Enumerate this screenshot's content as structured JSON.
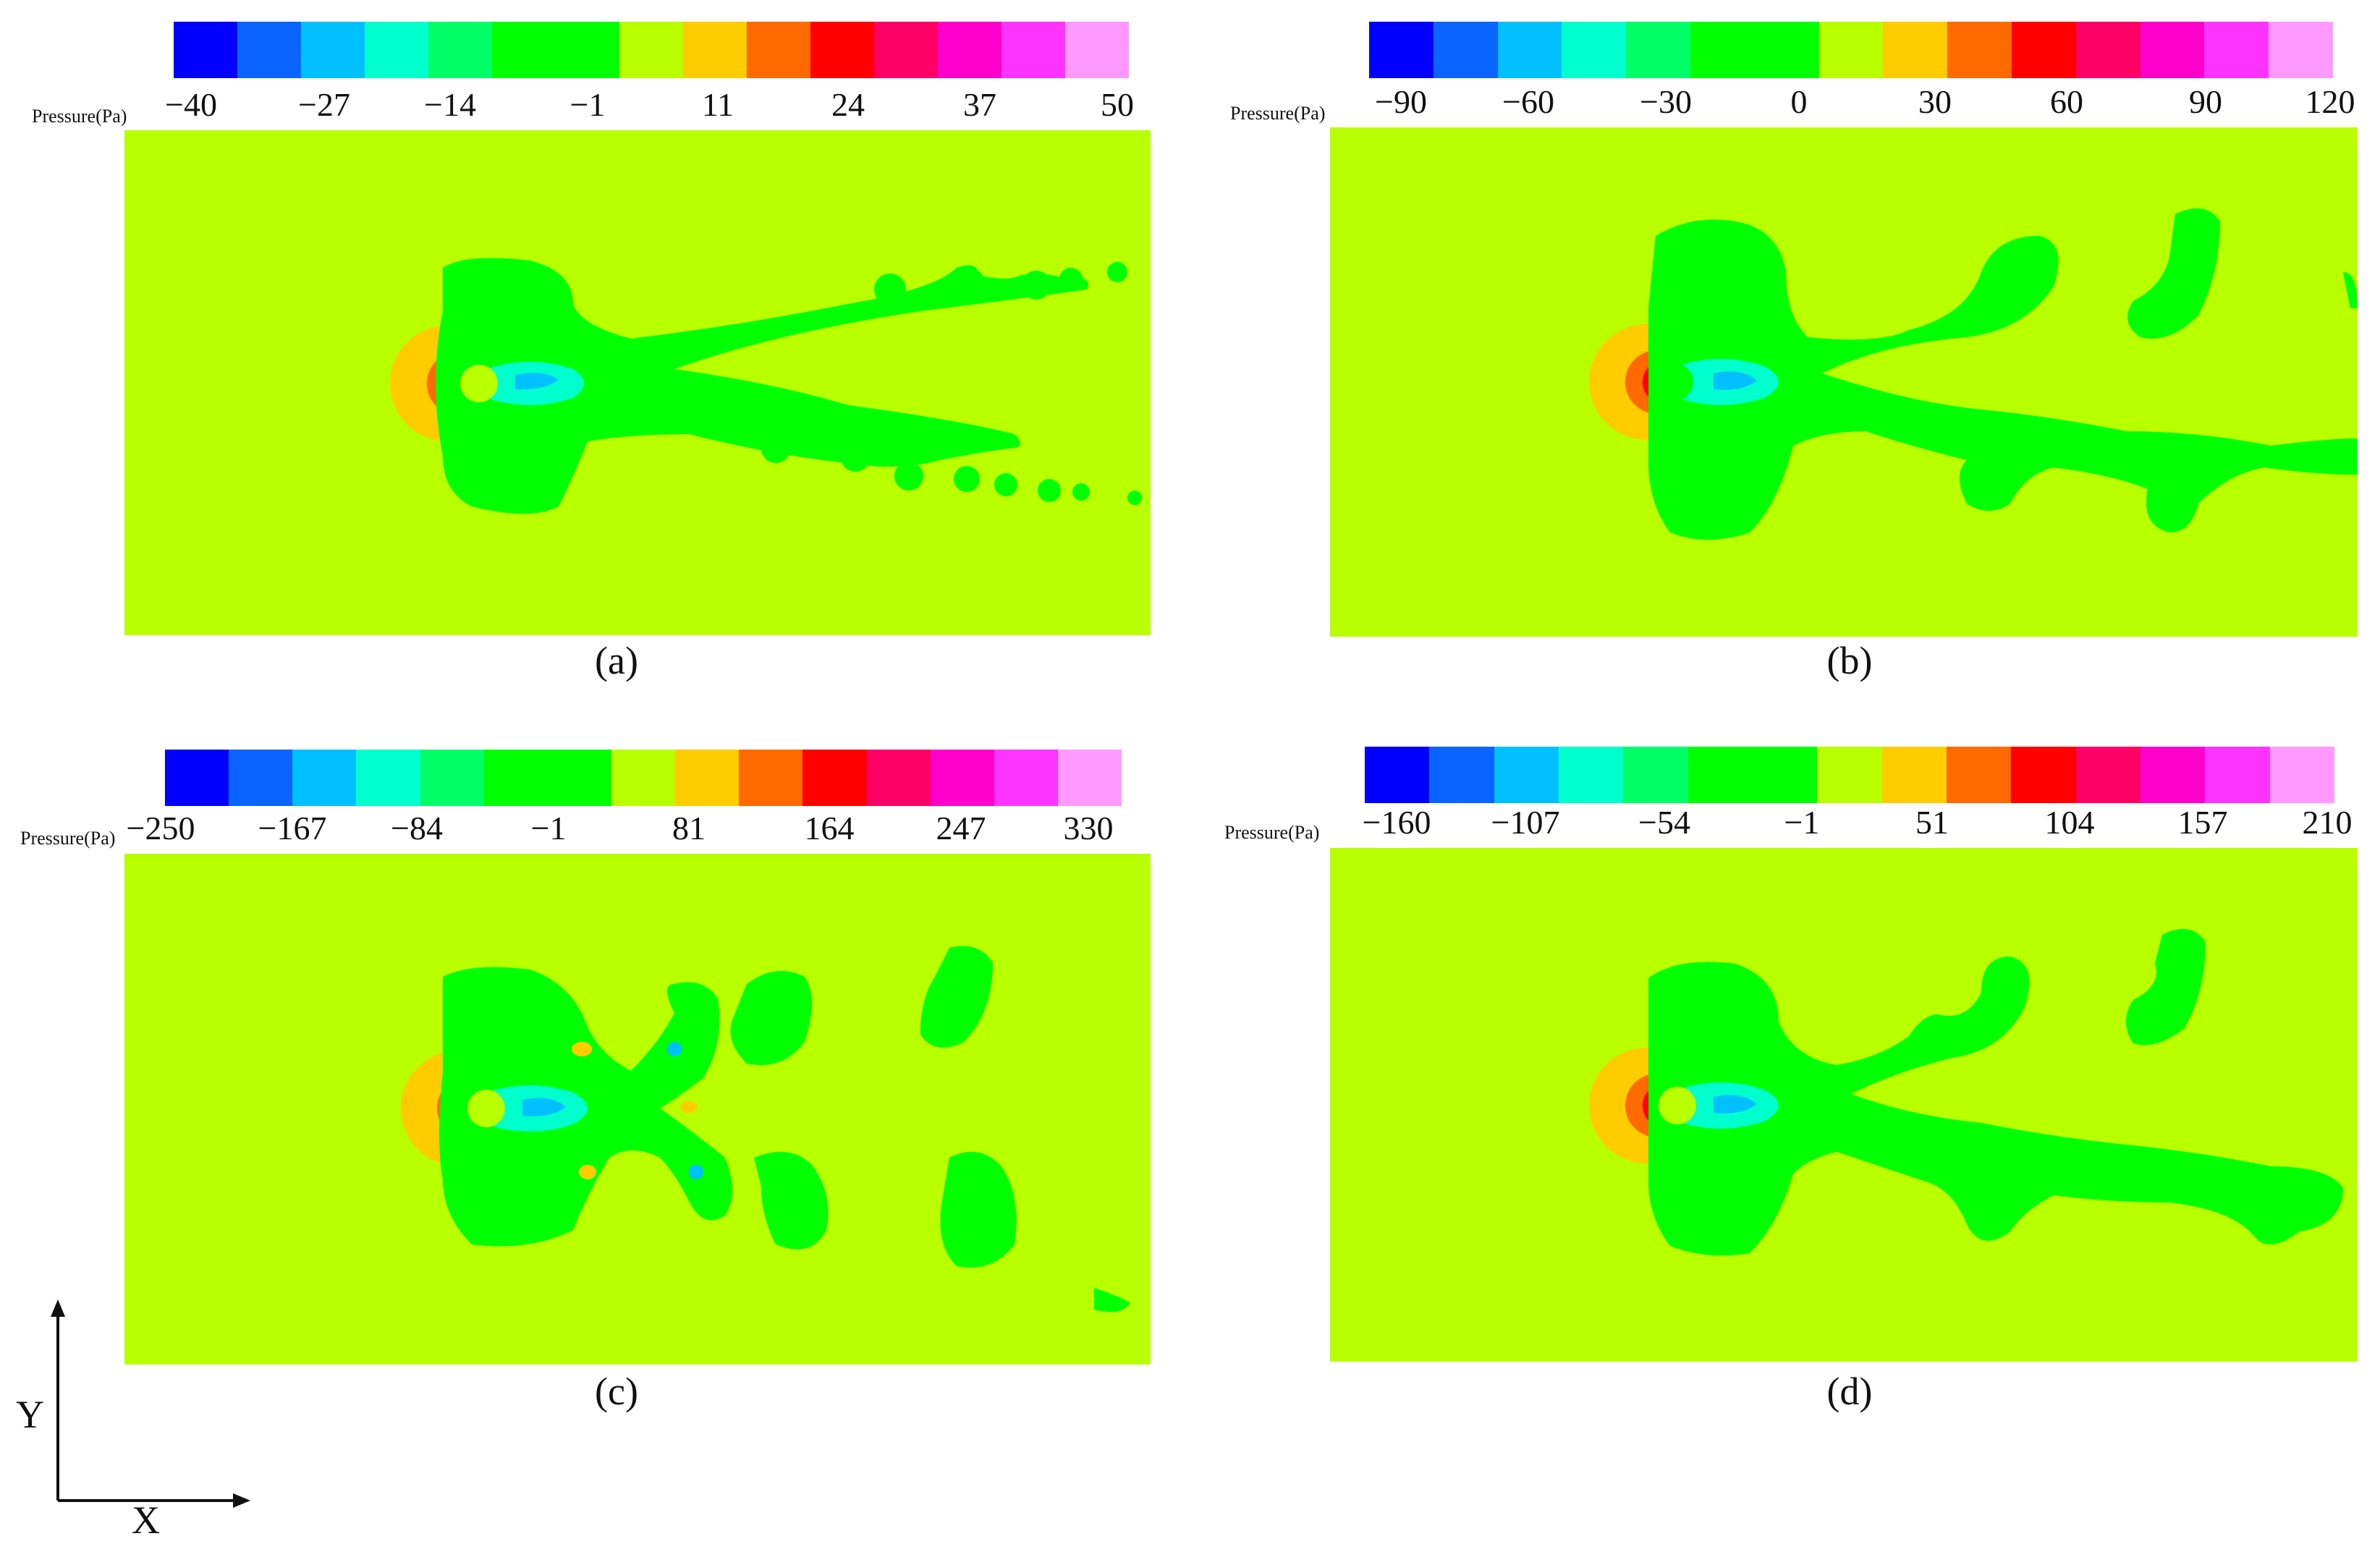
{
  "colorbar_colors": [
    "#0000ff",
    "#0a64ff",
    "#00c0ff",
    "#00ffcc",
    "#00ff66",
    "#00ff00",
    "#00ff00",
    "#b8ff00",
    "#ffcc00",
    "#ff6a00",
    "#ff0000",
    "#ff0066",
    "#ff00cc",
    "#ff33ff",
    "#ff99ff"
  ],
  "field_color": "#b8ff00",
  "panels": [
    {
      "id": "a",
      "caption": "(a)",
      "quantity_label": "Pressure(Pa)",
      "ticks": [
        "−40",
        "−27",
        "−14",
        "−1",
        "11",
        "24",
        "37",
        "50"
      ]
    },
    {
      "id": "b",
      "caption": "(b)",
      "quantity_label": "Pressure(Pa)",
      "ticks": [
        "−90",
        "−60",
        "−30",
        "0",
        "30",
        "60",
        "90",
        "120"
      ]
    },
    {
      "id": "c",
      "caption": "(c)",
      "quantity_label": "Pressure(Pa)",
      "ticks": [
        "−250",
        "−167",
        "−84",
        "−1",
        "81",
        "164",
        "247",
        "330"
      ]
    },
    {
      "id": "d",
      "caption": "(d)",
      "quantity_label": "Pressure(Pa)",
      "ticks": [
        "−160",
        "−107",
        "−54",
        "−1",
        "51",
        "104",
        "157",
        "210"
      ]
    }
  ],
  "axes": {
    "x_label": "X",
    "y_label": "Y"
  }
}
